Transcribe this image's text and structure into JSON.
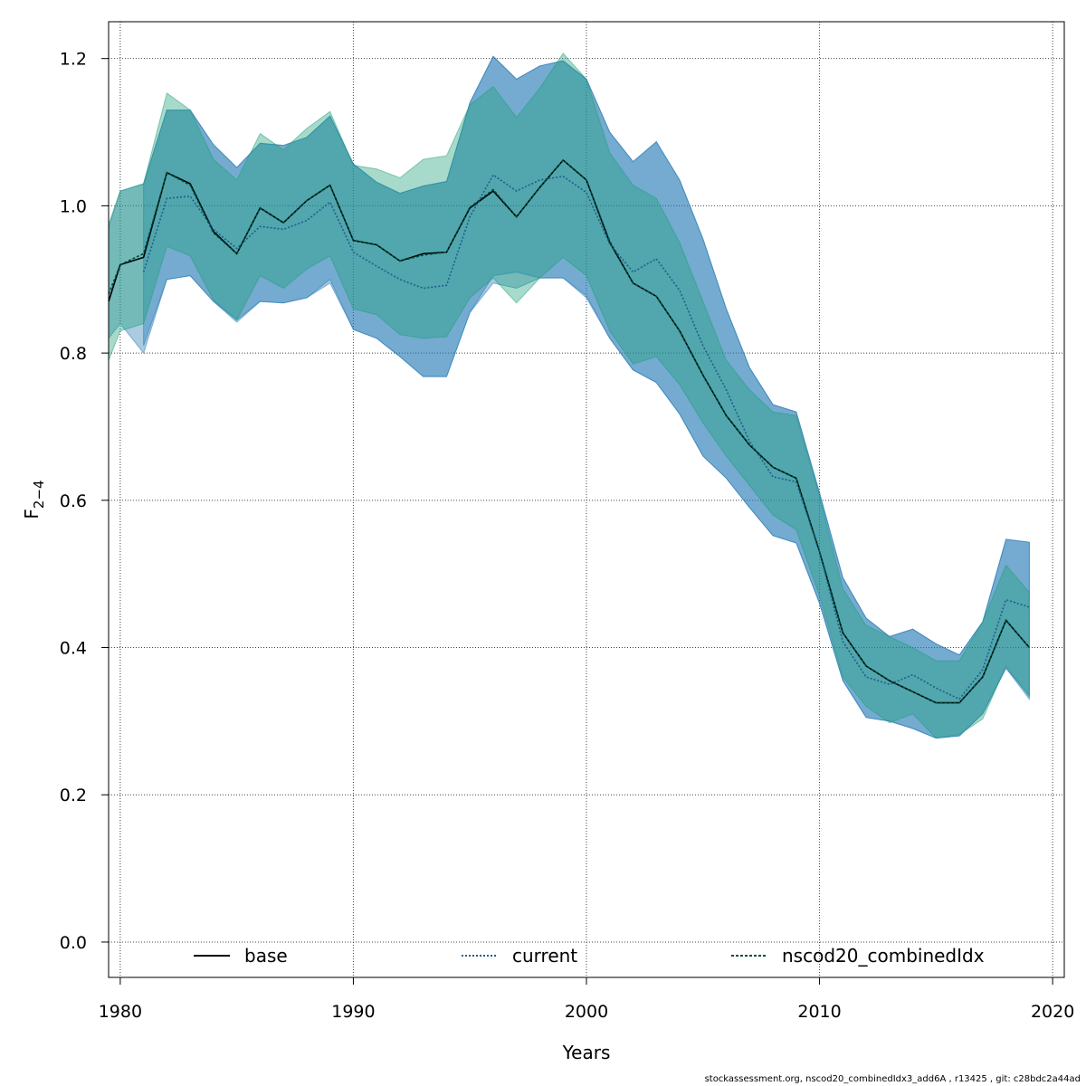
{
  "chart_data": {
    "type": "line",
    "title": "",
    "xlabel": "Years",
    "ylabel": "F̅₂₋₄",
    "ylabel_main": "F",
    "ylabel_sub": "2−4",
    "xlim": [
      1979.5,
      2020.5
    ],
    "ylim": [
      -0.048,
      1.25
    ],
    "x_ticks": [
      1980,
      1990,
      2000,
      2010,
      2020
    ],
    "y_ticks": [
      0.0,
      0.2,
      0.4,
      0.6,
      0.8,
      1.0,
      1.2
    ],
    "y_tick_labels": [
      "0.0",
      "0.2",
      "0.4",
      "0.6",
      "0.8",
      "1.0",
      "1.2"
    ],
    "grid": true,
    "legend_position": "bottom",
    "series": [
      {
        "name": "base",
        "line_style": "solid",
        "line_color": "#000000",
        "band_color": "#1f77b4",
        "x": [
          1979,
          1980,
          1981,
          1982,
          1983,
          1984,
          1985,
          1986,
          1987,
          1988,
          1989,
          1990,
          1991,
          1992,
          1993,
          1994,
          1995,
          1996,
          1997,
          1998,
          1999,
          2000,
          2001,
          2002,
          2003,
          2004,
          2005,
          2006,
          2007,
          2008,
          2009,
          2010,
          2011,
          2012,
          2013,
          2014,
          2015,
          2016,
          2017,
          2018,
          2019
        ],
        "values": [
          0.87,
          0.92,
          0.93,
          1.045,
          1.03,
          0.965,
          0.935,
          0.997,
          0.977,
          1.007,
          1.028,
          0.953,
          0.947,
          0.925,
          0.935,
          0.937,
          0.997,
          1.02,
          0.985,
          1.025,
          1.062,
          1.035,
          0.95,
          0.895,
          0.877,
          0.83,
          0.77,
          0.715,
          0.675,
          0.645,
          0.63,
          0.53,
          0.42,
          0.375,
          0.355,
          0.34,
          0.325,
          0.325,
          0.36,
          0.437,
          0.4
        ],
        "lower": [
          0.82,
          0.84,
          0.8,
          0.9,
          0.905,
          0.87,
          0.842,
          0.87,
          0.868,
          0.875,
          0.9,
          0.832,
          0.82,
          0.795,
          0.768,
          0.768,
          0.855,
          0.905,
          0.91,
          0.902,
          0.902,
          0.878,
          0.82,
          0.777,
          0.76,
          0.717,
          0.66,
          0.63,
          0.59,
          0.552,
          0.542,
          0.46,
          0.355,
          0.305,
          0.3,
          0.29,
          0.277,
          0.28,
          0.31,
          0.372,
          0.335
        ],
        "upper": [
          0.97,
          1.02,
          1.03,
          1.13,
          1.13,
          1.083,
          1.052,
          1.085,
          1.082,
          1.093,
          1.122,
          1.057,
          1.032,
          1.017,
          1.027,
          1.033,
          1.14,
          1.203,
          1.172,
          1.19,
          1.197,
          1.172,
          1.1,
          1.06,
          1.087,
          1.035,
          0.955,
          0.86,
          0.78,
          0.73,
          0.72,
          0.61,
          0.495,
          0.44,
          0.415,
          0.425,
          0.405,
          0.39,
          0.435,
          0.547,
          0.543
        ]
      },
      {
        "name": "current",
        "line_style": "dotted",
        "line_color": "#1f5f8b",
        "band_color": "#1f77b4",
        "x": [
          1981,
          1982,
          1983,
          1984,
          1985,
          1986,
          1987,
          1988,
          1989,
          1990,
          1991,
          1992,
          1993,
          1994,
          1995,
          1996,
          1997,
          1998,
          1999,
          2000,
          2001,
          2002,
          2003,
          2004,
          2005,
          2006,
          2007,
          2008,
          2009,
          2010,
          2011,
          2012,
          2013,
          2014,
          2015,
          2016,
          2017,
          2018,
          2019
        ],
        "values": [
          0.91,
          1.01,
          1.013,
          0.968,
          0.942,
          0.972,
          0.968,
          0.98,
          1.005,
          0.937,
          0.918,
          0.9,
          0.888,
          0.892,
          0.985,
          1.042,
          1.02,
          1.035,
          1.04,
          1.018,
          0.948,
          0.91,
          0.928,
          0.885,
          0.81,
          0.75,
          0.68,
          0.632,
          0.625,
          0.53,
          0.408,
          0.36,
          0.35,
          0.363,
          0.345,
          0.33,
          0.37,
          0.465,
          0.455
        ],
        "lower": [
          0.81,
          0.9,
          0.905,
          0.87,
          0.845,
          0.87,
          0.868,
          0.875,
          0.895,
          0.832,
          0.82,
          0.795,
          0.768,
          0.768,
          0.855,
          0.895,
          0.888,
          0.902,
          0.902,
          0.875,
          0.82,
          0.777,
          0.76,
          0.717,
          0.66,
          0.63,
          0.59,
          0.552,
          0.542,
          0.46,
          0.355,
          0.305,
          0.3,
          0.29,
          0.277,
          0.28,
          0.31,
          0.372,
          0.33
        ],
        "upper": [
          1.03,
          1.13,
          1.13,
          1.083,
          1.052,
          1.085,
          1.082,
          1.093,
          1.122,
          1.057,
          1.032,
          1.017,
          1.027,
          1.033,
          1.14,
          1.203,
          1.172,
          1.19,
          1.197,
          1.172,
          1.1,
          1.06,
          1.087,
          1.035,
          0.955,
          0.86,
          0.78,
          0.73,
          0.72,
          0.61,
          0.495,
          0.44,
          0.415,
          0.425,
          0.405,
          0.39,
          0.435,
          0.547,
          0.543
        ]
      },
      {
        "name": "nscod20_combinedIdx",
        "line_style": "dashed",
        "line_color": "#004d40",
        "band_color": "#1b9e77",
        "x": [
          1979,
          1980,
          1981,
          1982,
          1983,
          1984,
          1985,
          1986,
          1987,
          1988,
          1989,
          1990,
          1991,
          1992,
          1993,
          1994,
          1995,
          1996,
          1997,
          1998,
          1999,
          2000,
          2001,
          2002,
          2003,
          2004,
          2005,
          2006,
          2007,
          2008,
          2009,
          2010,
          2011,
          2012,
          2013,
          2014,
          2015,
          2016,
          2017,
          2018,
          2019
        ],
        "values": [
          0.88,
          0.92,
          0.935,
          1.045,
          1.028,
          0.963,
          0.935,
          0.997,
          0.977,
          1.007,
          1.028,
          0.953,
          0.947,
          0.925,
          0.933,
          0.937,
          0.998,
          1.022,
          0.985,
          1.025,
          1.062,
          1.035,
          0.952,
          0.895,
          0.877,
          0.83,
          0.77,
          0.715,
          0.675,
          0.645,
          0.63,
          0.53,
          0.42,
          0.375,
          0.355,
          0.34,
          0.325,
          0.325,
          0.36,
          0.437,
          0.4
        ],
        "lower": [
          0.79,
          0.83,
          0.84,
          0.945,
          0.932,
          0.872,
          0.845,
          0.905,
          0.888,
          0.914,
          0.932,
          0.86,
          0.852,
          0.825,
          0.82,
          0.822,
          0.875,
          0.902,
          0.868,
          0.902,
          0.93,
          0.905,
          0.83,
          0.785,
          0.795,
          0.757,
          0.705,
          0.66,
          0.62,
          0.58,
          0.56,
          0.47,
          0.36,
          0.32,
          0.298,
          0.31,
          0.277,
          0.282,
          0.303,
          0.375,
          0.333
        ],
        "upper": [
          0.975,
          1.02,
          1.03,
          1.153,
          1.13,
          1.063,
          1.035,
          1.098,
          1.076,
          1.105,
          1.128,
          1.055,
          1.05,
          1.038,
          1.063,
          1.068,
          1.137,
          1.162,
          1.12,
          1.16,
          1.207,
          1.172,
          1.072,
          1.028,
          1.01,
          0.95,
          0.87,
          0.79,
          0.75,
          0.72,
          0.715,
          0.605,
          0.48,
          0.43,
          0.415,
          0.4,
          0.382,
          0.382,
          0.435,
          0.512,
          0.475
        ]
      }
    ]
  },
  "footer": "stockassessment.org, nscod20_combinedIdx3_add6A , r13425 , git: c28bdc2a44ad"
}
